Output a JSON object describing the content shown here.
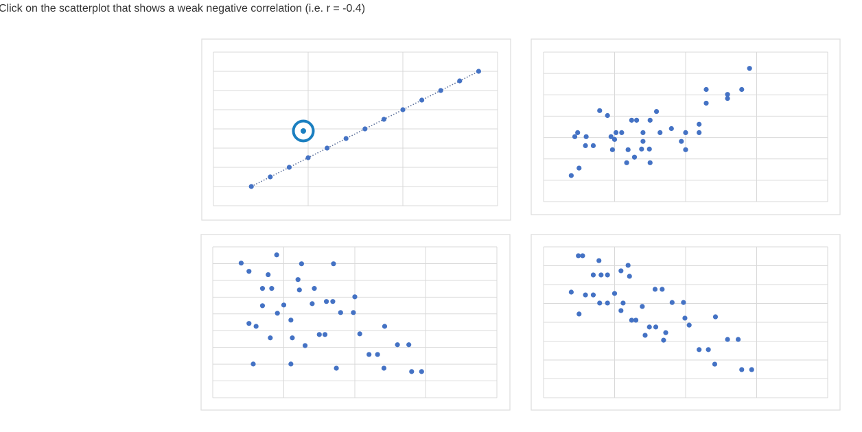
{
  "prompt": "Click on the scatterplot that shows a weak negative correlation (i.e. r = -0.4)",
  "chart_data": [
    {
      "type": "scatter",
      "color": "#4472c4",
      "trendline": true,
      "grid": true,
      "xlim": [
        0,
        3
      ],
      "ylim": [
        0,
        8
      ],
      "xticks": [
        0,
        1,
        2,
        3
      ],
      "yticks": [
        0,
        1,
        2,
        3,
        4,
        5,
        6,
        7,
        8
      ],
      "x": [
        0.4,
        0.6,
        0.8,
        1.0,
        1.2,
        1.4,
        1.6,
        1.8,
        2.0,
        2.2,
        2.4,
        2.6,
        2.8
      ],
      "values": [
        1.0,
        1.5,
        2.0,
        2.5,
        3.0,
        3.5,
        4.0,
        4.5,
        5.0,
        5.5,
        6.0,
        6.5,
        7.0
      ]
    },
    {
      "type": "scatter",
      "color": "#4472c4",
      "grid": true,
      "xlim": [
        0,
        4
      ],
      "ylim": [
        0,
        7
      ],
      "xticks": [
        0,
        1,
        2,
        3,
        4
      ],
      "yticks": [
        0,
        1,
        2,
        3,
        4,
        5,
        6,
        7
      ],
      "x": [
        2.9,
        2.29,
        2.59,
        2.79,
        2.59,
        2.29,
        0.79,
        0.9,
        1.59,
        1.24,
        1.31,
        1.5,
        2.19,
        1.8,
        0.48,
        1.02,
        1.1,
        1.4,
        1.64,
        2.0,
        2.19,
        0.44,
        0.6,
        0.95,
        1.0,
        1.4,
        1.94,
        0.59,
        0.7,
        0.97,
        1.19,
        1.38,
        1.49,
        2.0,
        1.28,
        1.17,
        1.5,
        0.5,
        0.39
      ],
      "values": [
        6.24,
        5.25,
        5.02,
        5.25,
        4.83,
        4.61,
        4.26,
        4.03,
        4.22,
        3.81,
        3.81,
        3.81,
        3.62,
        3.42,
        3.23,
        3.23,
        3.23,
        3.23,
        3.23,
        3.23,
        3.23,
        3.04,
        3.04,
        3.04,
        2.91,
        2.82,
        2.82,
        2.62,
        2.62,
        2.43,
        2.43,
        2.46,
        2.46,
        2.43,
        2.08,
        1.82,
        1.82,
        1.57,
        1.22
      ]
    },
    {
      "type": "scatter",
      "color": "#4472c4",
      "grid": true,
      "xlim": [
        0,
        4
      ],
      "ylim": [
        0,
        9
      ],
      "xticks": [
        0,
        1,
        2,
        3,
        4
      ],
      "yticks": [
        0,
        1,
        2,
        3,
        4,
        5,
        6,
        7,
        8,
        9
      ],
      "x": [
        0.4,
        0.51,
        0.9,
        0.78,
        1.25,
        1.7,
        1.2,
        0.7,
        0.83,
        1.22,
        1.43,
        0.7,
        1.0,
        1.4,
        1.6,
        1.69,
        2.0,
        0.91,
        1.8,
        1.98,
        0.51,
        0.61,
        1.1,
        1.5,
        1.58,
        2.07,
        2.42,
        0.81,
        1.12,
        1.3,
        2.6,
        2.76,
        2.2,
        2.32,
        0.57,
        1.1,
        1.74,
        2.41,
        2.8,
        2.94
      ],
      "values": [
        8.03,
        7.54,
        8.52,
        7.34,
        7.99,
        7.99,
        7.05,
        6.52,
        6.52,
        6.43,
        6.52,
        5.49,
        5.53,
        5.61,
        5.74,
        5.74,
        6.02,
        5.04,
        5.08,
        5.08,
        4.43,
        4.26,
        4.63,
        3.77,
        3.77,
        3.81,
        4.26,
        3.57,
        3.57,
        3.11,
        3.16,
        3.16,
        2.58,
        2.58,
        2.01,
        2.01,
        1.76,
        1.76,
        1.56,
        1.56
      ]
    },
    {
      "type": "scatter",
      "color": "#4472c4",
      "grid": true,
      "xlim": [
        0,
        4
      ],
      "ylim": [
        0,
        8
      ],
      "xticks": [
        0,
        1,
        2,
        3,
        4
      ],
      "yticks": [
        0,
        1,
        2,
        3,
        4,
        5,
        6,
        7,
        8
      ],
      "x": [
        0.49,
        0.55,
        0.78,
        1.19,
        1.09,
        1.21,
        0.7,
        0.81,
        0.9,
        0.39,
        0.59,
        0.7,
        1.0,
        1.57,
        1.67,
        0.79,
        0.9,
        1.12,
        1.81,
        1.97,
        1.39,
        1.09,
        0.5,
        1.24,
        1.3,
        1.99,
        2.05,
        2.42,
        1.49,
        1.58,
        1.72,
        1.43,
        1.69,
        2.59,
        2.74,
        2.19,
        2.32,
        2.41,
        2.79,
        2.93
      ],
      "values": [
        7.53,
        7.53,
        7.27,
        7.02,
        6.73,
        6.44,
        6.51,
        6.51,
        6.51,
        5.6,
        5.45,
        5.45,
        5.53,
        5.75,
        5.75,
        5.02,
        5.02,
        5.02,
        5.05,
        5.05,
        4.84,
        4.62,
        4.44,
        4.11,
        4.11,
        4.22,
        3.85,
        4.29,
        3.75,
        3.75,
        3.45,
        3.31,
        3.05,
        3.09,
        3.09,
        2.55,
        2.55,
        1.78,
        1.49,
        1.49
      ]
    }
  ]
}
